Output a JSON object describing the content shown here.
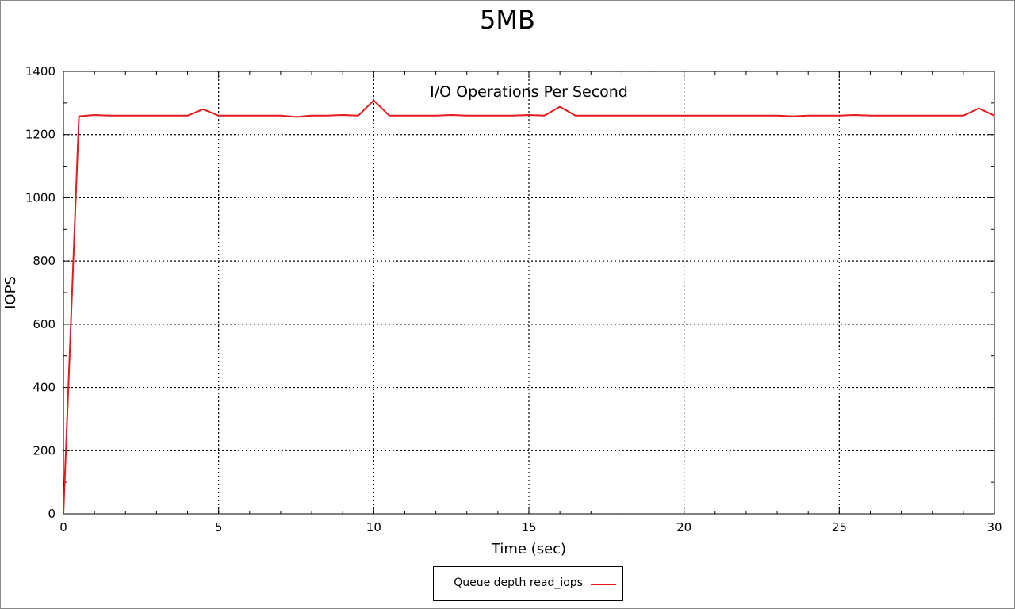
{
  "chart_data": {
    "type": "line",
    "title": "5MB",
    "subtitle": "I/O Operations Per Second",
    "xlabel": "Time (sec)",
    "ylabel": "IOPS",
    "xlim": [
      0,
      30
    ],
    "ylim": [
      0,
      1400
    ],
    "xticks": [
      0,
      5,
      10,
      15,
      20,
      25,
      30
    ],
    "yticks": [
      0,
      200,
      400,
      600,
      800,
      1000,
      1200,
      1400
    ],
    "grid": true,
    "legend_position": "bottom-center",
    "series": [
      {
        "name": "Queue depth read_iops",
        "color": "#e41a1c",
        "x": [
          0,
          0.5,
          1,
          1.5,
          2,
          2.5,
          3,
          3.5,
          4,
          4.5,
          5,
          5.5,
          6,
          6.5,
          7,
          7.5,
          8,
          8.5,
          9,
          9.5,
          10,
          10.5,
          11,
          11.5,
          12,
          12.5,
          13,
          13.5,
          14,
          14.5,
          15,
          15.5,
          16,
          16.5,
          17,
          17.5,
          18,
          18.5,
          19,
          19.5,
          20,
          20.5,
          21,
          21.5,
          22,
          22.5,
          23,
          23.5,
          24,
          24.5,
          25,
          25.5,
          26,
          26.5,
          27,
          27.5,
          28,
          28.5,
          29,
          29.5,
          30
        ],
        "y": [
          0,
          1258,
          1262,
          1260,
          1260,
          1260,
          1260,
          1260,
          1260,
          1280,
          1260,
          1260,
          1260,
          1260,
          1260,
          1256,
          1260,
          1260,
          1262,
          1260,
          1308,
          1260,
          1260,
          1260,
          1260,
          1262,
          1260,
          1260,
          1260,
          1260,
          1262,
          1260,
          1288,
          1260,
          1260,
          1260,
          1260,
          1260,
          1260,
          1260,
          1260,
          1260,
          1260,
          1260,
          1260,
          1260,
          1260,
          1258,
          1260,
          1260,
          1260,
          1262,
          1260,
          1260,
          1260,
          1260,
          1260,
          1260,
          1260,
          1283,
          1260
        ]
      }
    ]
  }
}
